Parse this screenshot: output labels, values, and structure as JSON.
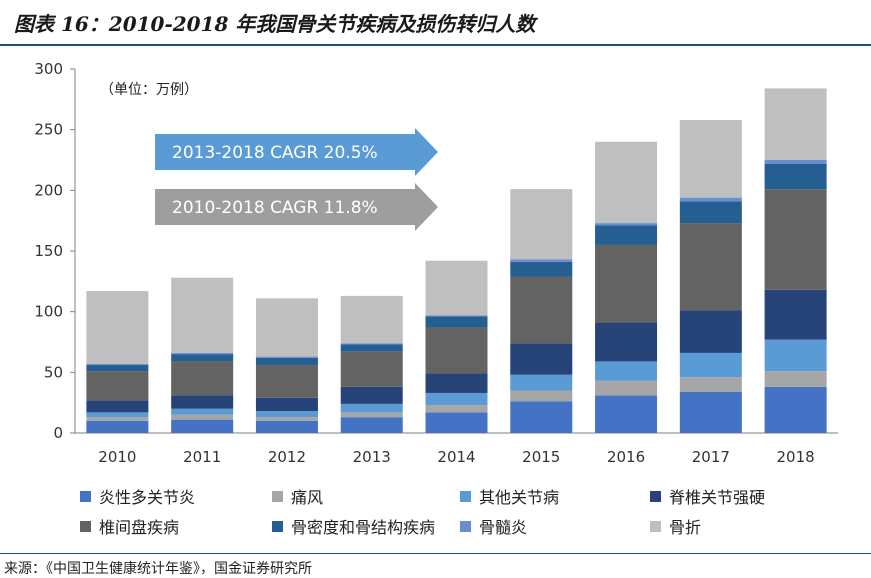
{
  "title": "图表 16：2010-2018 年我国骨关节疾病及损伤转归人数",
  "source": "来源：《中国卫生健康统计年鉴》，国金证券研究所",
  "colors": {
    "accent": "#1f4e79",
    "series": [
      "#4472c4",
      "#a6a6a6",
      "#5b9bd5",
      "#264478",
      "#636363",
      "#255e91",
      "#698ed0",
      "#bfbfbf"
    ],
    "cagr1": "#5b9bd5",
    "cagr2": "#9e9e9e"
  },
  "annotations": {
    "cagr1": "2013-2018 CAGR 20.5%",
    "cagr2": "2010-2018 CAGR 11.8%"
  },
  "chart_data": {
    "type": "stacked-bar",
    "unit_label": "（单位：万例）",
    "categories": [
      "2010",
      "2011",
      "2012",
      "2013",
      "2014",
      "2015",
      "2016",
      "2017",
      "2018"
    ],
    "ylim": [
      0,
      300
    ],
    "yticks": [
      0,
      50,
      100,
      150,
      200,
      250,
      300
    ],
    "series": [
      {
        "name": "炎性多关节炎",
        "values": [
          10,
          11,
          10,
          13,
          17,
          26,
          31,
          34,
          38
        ]
      },
      {
        "name": "痛风",
        "values": [
          3,
          4,
          3,
          4,
          6,
          9,
          12,
          12,
          13
        ]
      },
      {
        "name": "其他关节病",
        "values": [
          4,
          5,
          5,
          7,
          10,
          13,
          16,
          20,
          26
        ]
      },
      {
        "name": "脊椎关节强硬",
        "values": [
          10,
          11,
          11,
          14,
          16,
          26,
          32,
          35,
          41
        ]
      },
      {
        "name": "椎间盘疾病",
        "values": [
          24,
          28,
          27,
          29,
          38,
          55,
          64,
          72,
          83
        ]
      },
      {
        "name": "骨密度和骨结构疾病",
        "values": [
          5,
          6,
          6,
          6,
          9,
          12,
          16,
          18,
          21
        ]
      },
      {
        "name": "骨髓炎",
        "values": [
          1,
          1,
          1,
          1,
          1,
          2,
          2,
          3,
          3
        ]
      },
      {
        "name": "骨折",
        "values": [
          60,
          62,
          48,
          39,
          45,
          58,
          67,
          64,
          59
        ]
      }
    ]
  }
}
